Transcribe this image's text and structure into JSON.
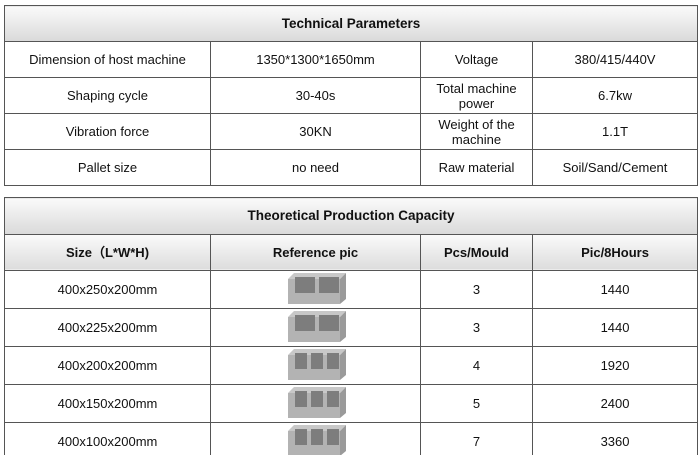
{
  "technical": {
    "title": "Technical Parameters",
    "rows": [
      [
        "Dimension of host machine",
        "1350*1300*1650mm",
        "Voltage",
        "380/415/440V"
      ],
      [
        "Shaping cycle",
        "30-40s",
        "Total machine power",
        "6.7kw"
      ],
      [
        "Vibration force",
        "30KN",
        "Weight  of the machine",
        "1.1T"
      ],
      [
        "Pallet size",
        "no need",
        "Raw material",
        "Soil/Sand/Cement"
      ]
    ]
  },
  "capacity": {
    "title": "Theoretical  Production Capacity",
    "header": [
      "Size（L*W*H)",
      "Reference pic",
      "Pcs/Mould",
      "Pic/8Hours"
    ],
    "rows": [
      [
        "400x250x200mm",
        3,
        1440
      ],
      [
        "400x225x200mm",
        3,
        1440
      ],
      [
        "400x200x200mm",
        4,
        1920
      ],
      [
        "400x150x200mm",
        5,
        2400
      ],
      [
        "400x100x200mm",
        7,
        3360
      ]
    ]
  }
}
